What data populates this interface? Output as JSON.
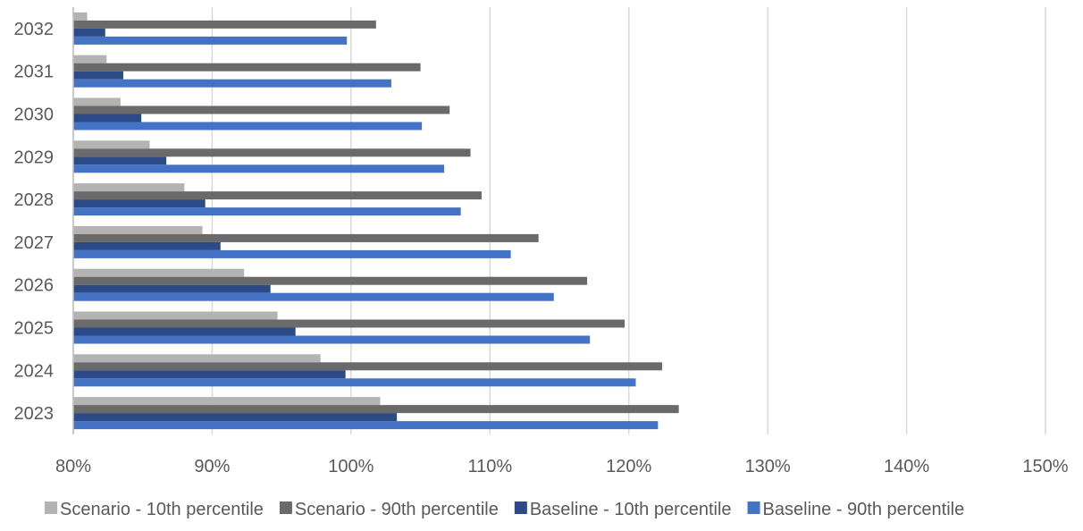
{
  "chart_data": {
    "type": "bar",
    "orientation": "horizontal",
    "title": "",
    "xlabel": "",
    "ylabel": "",
    "categories": [
      "2023",
      "2024",
      "2025",
      "2026",
      "2027",
      "2028",
      "2029",
      "2030",
      "2031",
      "2032"
    ],
    "x_ticks": [
      "80%",
      "90%",
      "100%",
      "110%",
      "120%",
      "130%",
      "140%",
      "150%"
    ],
    "xlim": [
      80,
      150
    ],
    "x_unit": "%",
    "grid": "vertical",
    "legend_position": "bottom",
    "series": [
      {
        "name": "Scenario - 10th percentile",
        "color": "#b3b3b3",
        "values": [
          102.1,
          97.8,
          94.7,
          92.3,
          89.3,
          88.0,
          85.5,
          83.4,
          82.4,
          81.0
        ]
      },
      {
        "name": "Scenario - 90th percentile",
        "color": "#6a6a6a",
        "values": [
          123.6,
          122.4,
          119.7,
          117.0,
          113.5,
          109.4,
          108.6,
          107.1,
          105.0,
          101.8
        ]
      },
      {
        "name": "Baseline - 10th percentile",
        "color": "#2c4a86",
        "values": [
          103.3,
          99.6,
          96.0,
          94.2,
          90.6,
          89.5,
          86.7,
          84.9,
          83.6,
          82.3
        ]
      },
      {
        "name": "Baseline - 90th percentile",
        "color": "#4472c4",
        "values": [
          122.1,
          120.5,
          117.2,
          114.6,
          111.5,
          107.9,
          106.7,
          105.1,
          102.9,
          99.7
        ]
      }
    ]
  }
}
